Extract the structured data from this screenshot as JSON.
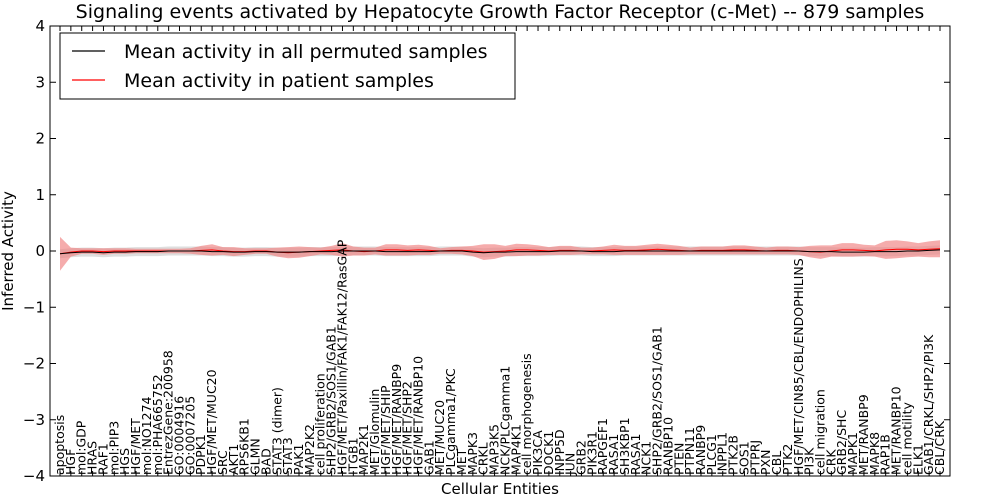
{
  "chart_data": {
    "type": "line",
    "title": "Signaling events activated by Hepatocyte Growth Factor Receptor (c-Met) -- 879 samples",
    "xlabel": "Cellular Entities",
    "ylabel": "Inferred Activity",
    "ylim": [
      -4,
      4
    ],
    "yticks": [
      -4,
      -3,
      -2,
      -1,
      0,
      1,
      2,
      3,
      4
    ],
    "grid": false,
    "legend_position": "top-left",
    "categories": [
      "apoptosis",
      "HGF",
      "mol:GDP",
      "HRAS",
      "RAF1",
      "mol:PIP3",
      "HGS",
      "HGF/MET",
      "mol:NO1274",
      "mol:PHA665752",
      "EntrezGene:200958",
      "GO:0004916",
      "GO:0007205",
      "PDPK1",
      "HGF/MET/MUC20",
      "SRC",
      "AKT1",
      "RPS6KB1",
      "GLMN",
      "BAD",
      "STAT3 (dimer)",
      "STAT3",
      "PAK1",
      "MAP2K2",
      "cell proliferation",
      "SHP2/GRB2/SOS1/GAB1",
      "HGF/MET/Paxillin/FAK1/FAK12/RasGAP",
      "ITGB1",
      "MAP2K1",
      "MET/Glomulin",
      "HGF/MET/SHIP",
      "HGF/MET/RANBP9",
      "HGF/MET/SHP2",
      "HGF/MET/RANBP10",
      "GAB1",
      "MET/MUC20",
      "PLCgamma1/PKC",
      "MET",
      "MAPK3",
      "CRKL",
      "MAP3K5",
      "NCK/PLCgamma1",
      "MAP4K1",
      "cell morphogenesis",
      "PIK3CA",
      "DOCK1",
      "INPP5D",
      "JUN",
      "GRB2",
      "PIK3R1",
      "RAPGEF1",
      "RASA1",
      "SH3KBP1",
      "RASA1",
      "NCK1",
      "SHP2/GRB2/SOS1/GAB1",
      "RANBP10",
      "PTEN",
      "PTPN11",
      "RANBP9",
      "PLCG1",
      "INPPL1",
      "PTK2B",
      "SOS1",
      "PTPRJ",
      "PXN",
      "CBL",
      "PTK2",
      "HGF/MET/CIN85/CBL/ENDOPHILINS",
      "PI3K",
      "cell migration",
      "CRK",
      "GRB2/SHC",
      "MAPK1",
      "MET/RANBP9",
      "MAPK8",
      "RAP1B",
      "MET/RANBP10",
      "cell motility",
      "ELK1",
      "GAB1/CRKL/SHP2/PI3K",
      "CBL/CRK"
    ],
    "series": [
      {
        "name": "Mean activity in all permuted samples",
        "color": "#000000",
        "values": [
          -0.05,
          -0.03,
          -0.02,
          -0.02,
          -0.03,
          -0.02,
          -0.02,
          -0.01,
          -0.01,
          -0.01,
          0,
          0,
          0,
          0,
          -0.01,
          -0.01,
          -0.02,
          -0.02,
          -0.01,
          -0.01,
          -0.02,
          -0.02,
          -0.02,
          -0.01,
          -0.01,
          -0.01,
          0,
          0,
          0,
          0,
          -0.01,
          -0.01,
          -0.01,
          -0.01,
          -0.01,
          0,
          0,
          0,
          -0.02,
          -0.03,
          -0.02,
          -0.02,
          -0.01,
          -0.01,
          -0.01,
          -0.01,
          0,
          0,
          0,
          -0.01,
          -0.01,
          -0.01,
          0,
          0,
          0,
          0,
          0,
          0,
          0,
          0,
          0,
          0,
          0,
          0,
          0,
          0,
          0,
          0,
          0,
          -0.01,
          -0.01,
          -0.01,
          -0.02,
          -0.02,
          -0.02,
          -0.01,
          -0.01,
          -0.01,
          0,
          0,
          0.01,
          0.02
        ],
        "band": 0.08
      },
      {
        "name": "Mean activity in patient samples",
        "color": "#ff0000",
        "fill": "#f08080",
        "values": [
          -0.05,
          -0.02,
          0,
          0,
          -0.01,
          0,
          0,
          0,
          0,
          0,
          0,
          0,
          0,
          0.01,
          0.02,
          0,
          -0.01,
          -0.01,
          0,
          0,
          -0.02,
          -0.03,
          -0.02,
          -0.01,
          0,
          0.01,
          0.02,
          0,
          -0.01,
          0,
          0.02,
          0.02,
          0.01,
          0.02,
          0.01,
          0,
          0.01,
          0.01,
          0,
          -0.02,
          -0.01,
          0,
          0.02,
          0.02,
          0.01,
          0,
          0.01,
          0.01,
          0,
          0,
          0.01,
          0.02,
          0.01,
          0.01,
          0.02,
          0.03,
          0.02,
          0.01,
          0,
          0.01,
          0.01,
          0.01,
          0.02,
          0.02,
          0.01,
          0,
          0.01,
          0.01,
          0,
          -0.01,
          -0.02,
          0,
          0.02,
          0.02,
          0.01,
          0,
          0.02,
          0.03,
          0.03,
          0.02,
          0.03,
          0.04
        ],
        "band": [
          0.3,
          0.08,
          0.05,
          0.05,
          0.06,
          0.05,
          0.05,
          0.04,
          0.04,
          0.04,
          0.04,
          0.04,
          0.05,
          0.08,
          0.1,
          0.07,
          0.08,
          0.06,
          0.05,
          0.05,
          0.08,
          0.1,
          0.1,
          0.08,
          0.06,
          0.08,
          0.12,
          0.08,
          0.07,
          0.06,
          0.1,
          0.1,
          0.09,
          0.09,
          0.08,
          0.05,
          0.06,
          0.07,
          0.09,
          0.14,
          0.13,
          0.09,
          0.11,
          0.1,
          0.09,
          0.07,
          0.08,
          0.08,
          0.06,
          0.06,
          0.07,
          0.09,
          0.08,
          0.08,
          0.09,
          0.1,
          0.09,
          0.08,
          0.06,
          0.07,
          0.07,
          0.07,
          0.08,
          0.08,
          0.07,
          0.06,
          0.07,
          0.07,
          0.07,
          0.1,
          0.12,
          0.1,
          0.12,
          0.12,
          0.1,
          0.1,
          0.16,
          0.16,
          0.14,
          0.12,
          0.14,
          0.15
        ]
      }
    ]
  }
}
